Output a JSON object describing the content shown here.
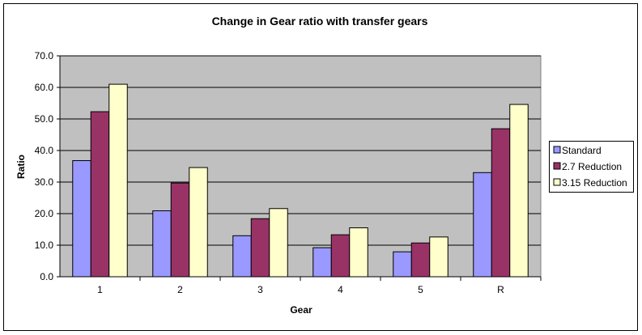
{
  "chart_data": {
    "type": "bar",
    "title": "Change in Gear ratio with transfer gears",
    "xlabel": "Gear",
    "ylabel": "Ratio",
    "categories": [
      "1",
      "2",
      "3",
      "4",
      "5",
      "R"
    ],
    "ylim": [
      0,
      70
    ],
    "yticks": [
      "0.0",
      "10.0",
      "20.0",
      "30.0",
      "40.0",
      "50.0",
      "60.0",
      "70.0"
    ],
    "grid": true,
    "legend_position": "right",
    "plot_background": "#c0c0c0",
    "series": [
      {
        "name": "Standard",
        "color": "#9999ff",
        "values": [
          36.8,
          20.9,
          13.0,
          9.2,
          7.9,
          33.0
        ]
      },
      {
        "name": "2.7 Reduction",
        "color": "#993366",
        "values": [
          52.3,
          29.7,
          18.4,
          13.3,
          10.7,
          46.9
        ]
      },
      {
        "name": "3.15 Reduction",
        "color": "#ffffcc",
        "values": [
          61.0,
          34.6,
          21.6,
          15.5,
          12.6,
          54.6
        ]
      }
    ]
  }
}
